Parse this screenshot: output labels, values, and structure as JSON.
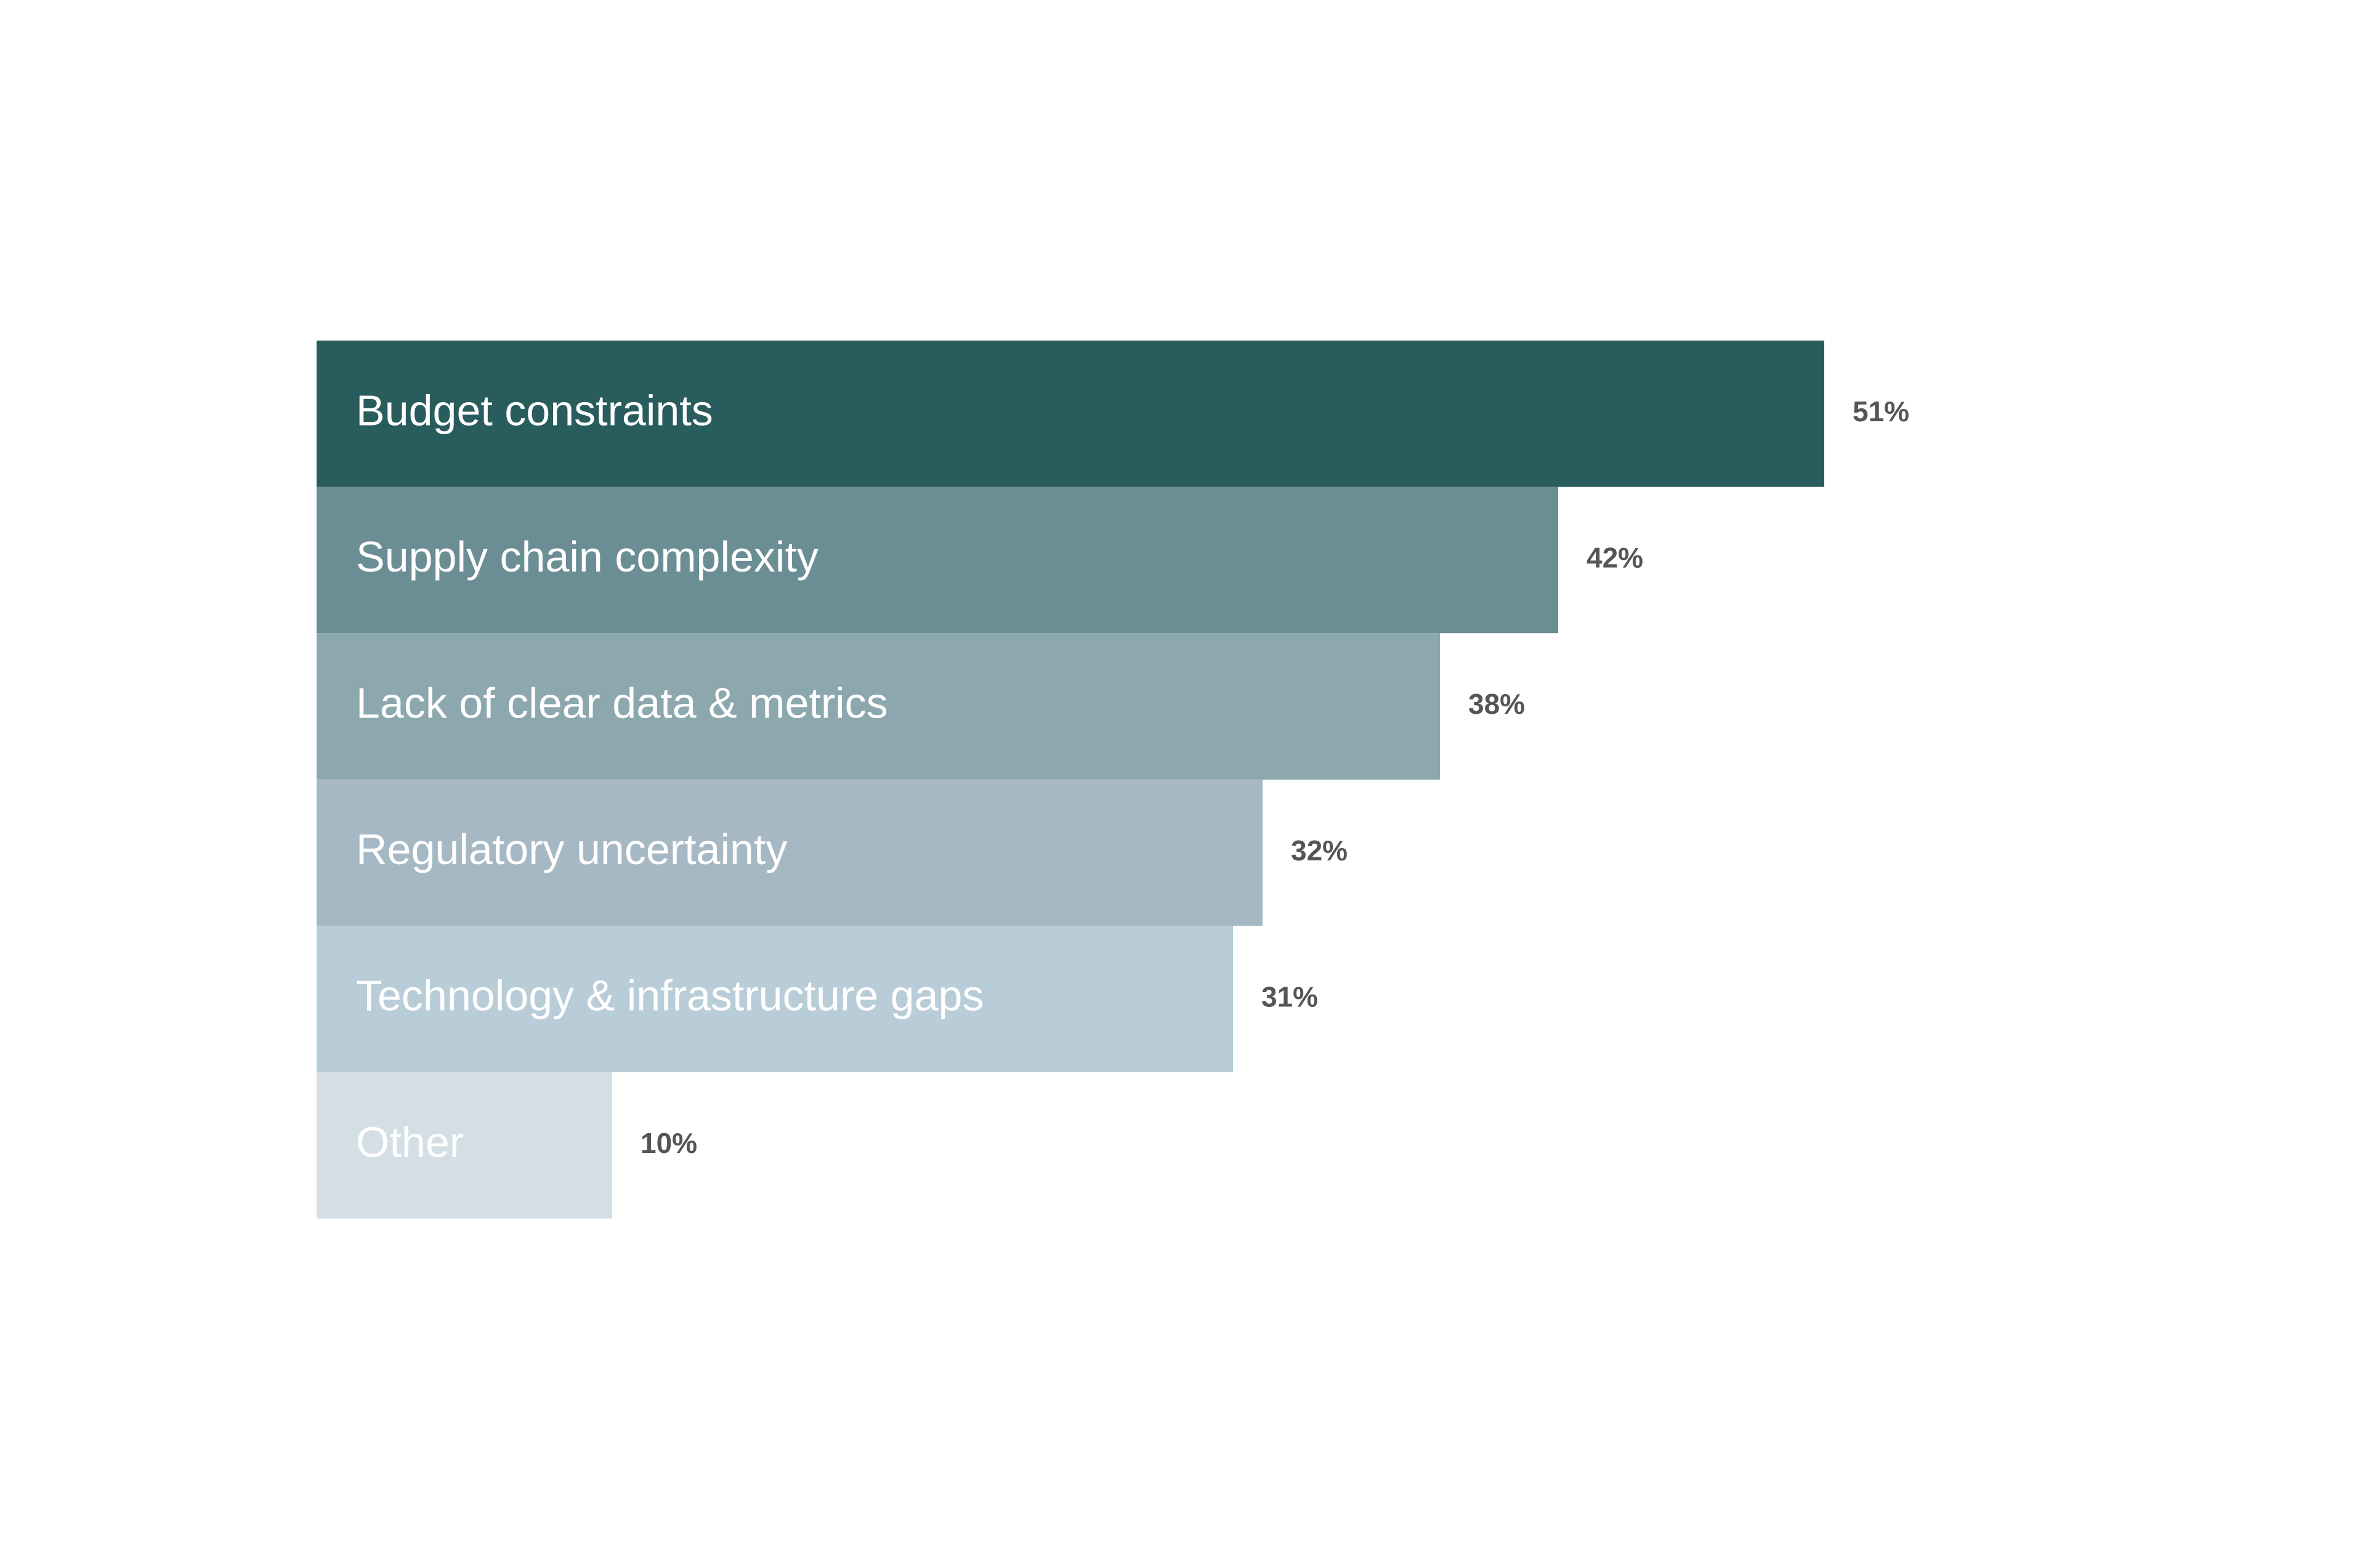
{
  "chart_data": {
    "type": "hbar",
    "categories": [
      "Budget constraints",
      "Supply chain complexity",
      "Lack of clear data & metrics",
      "Regulatory uncertainty",
      "Technology & infrastructure gaps",
      "Other"
    ],
    "values": [
      51,
      42,
      38,
      32,
      31,
      10
    ],
    "value_labels": [
      "51%",
      "42%",
      "38%",
      "32%",
      "31%",
      "10%"
    ],
    "colors": [
      "#295c5c",
      "#6a8e94",
      "#8ca8ae",
      "#a5b8c4",
      "#b8cdd8",
      "#d4dfe5"
    ]
  }
}
